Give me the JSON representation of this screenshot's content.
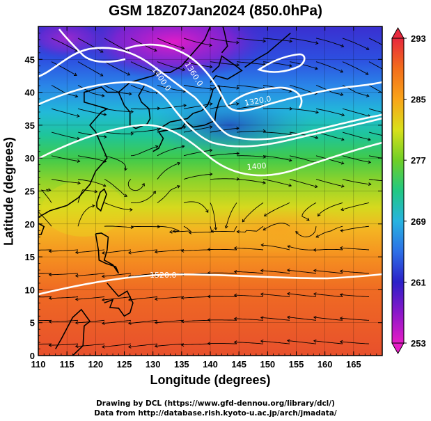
{
  "title": "GSM 18Z07Jan2024 (850.0hPa)",
  "xlabel": "Longitude (degrees)",
  "ylabel": "Latitude  (degrees)",
  "x_ticks": [
    "110",
    "115",
    "120",
    "125",
    "130",
    "135",
    "140",
    "145",
    "150",
    "155",
    "160",
    "165"
  ],
  "y_ticks": [
    "0",
    "5",
    "10",
    "15",
    "20",
    "25",
    "30",
    "35",
    "40",
    "45"
  ],
  "colorbar": {
    "min": 253,
    "max": 293,
    "tick_labels": [
      "293",
      "285",
      "277",
      "269",
      "261",
      "253"
    ],
    "colors": [
      "#e7293d",
      "#f36e1b",
      "#f9a41a",
      "#d9e01b",
      "#6fcf26",
      "#21c883",
      "#27b3e0",
      "#2d6fe6",
      "#2b20c8",
      "#8a17c9",
      "#e51dc6"
    ]
  },
  "contour_labels": [
    "1400.0",
    "1360.0",
    "1320.0",
    "1400",
    "1520.0"
  ],
  "credits": {
    "line1": "Drawing by DCL (https://www.gfd-dennou.org/library/dcl/)",
    "line2": "Data from http://database.rish.kyoto-u.ac.jp/arch/jmadata/"
  },
  "map": {
    "lon_range": [
      110,
      170
    ],
    "lat_range": [
      0,
      50
    ]
  }
}
